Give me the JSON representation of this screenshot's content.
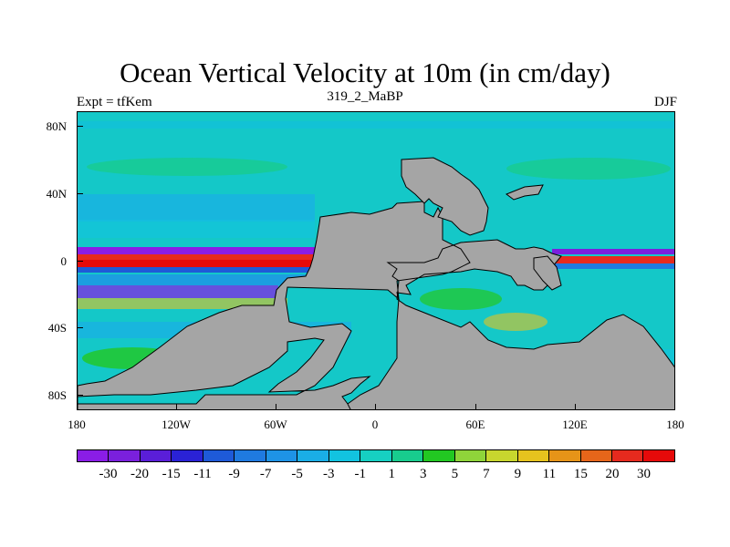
{
  "title": "Ocean Vertical Velocity at 10m (in cm/day)",
  "subtitle_left": "Expt = tfKem",
  "subtitle_center": "319_2_MaBP",
  "subtitle_right": "DJF",
  "lat_labels": [
    "80N",
    "40N",
    "0",
    "40S",
    "80S"
  ],
  "lon_labels": [
    "180",
    "120W",
    "60W",
    "0",
    "60E",
    "120E",
    "180"
  ],
  "colorbar_labels": [
    "-30",
    "-20",
    "-15",
    "-11",
    "-9",
    "-7",
    "-5",
    "-3",
    "-1",
    "1",
    "3",
    "5",
    "7",
    "9",
    "11",
    "15",
    "20",
    "30"
  ],
  "colorbar_colors": [
    "#8a1de6",
    "#7a20dd",
    "#5a1ed8",
    "#2a22d6",
    "#1e5ad8",
    "#1f7ae0",
    "#1e93e6",
    "#1aaee6",
    "#12c3e0",
    "#16d0c2",
    "#18cc8e",
    "#22c822",
    "#8fd43a",
    "#c8d62e",
    "#e6c31e",
    "#e69418",
    "#e6661a",
    "#e62a1e",
    "#e60a0a"
  ],
  "land_color": "#a5a5a5",
  "background_color": "#14c8c8"
}
